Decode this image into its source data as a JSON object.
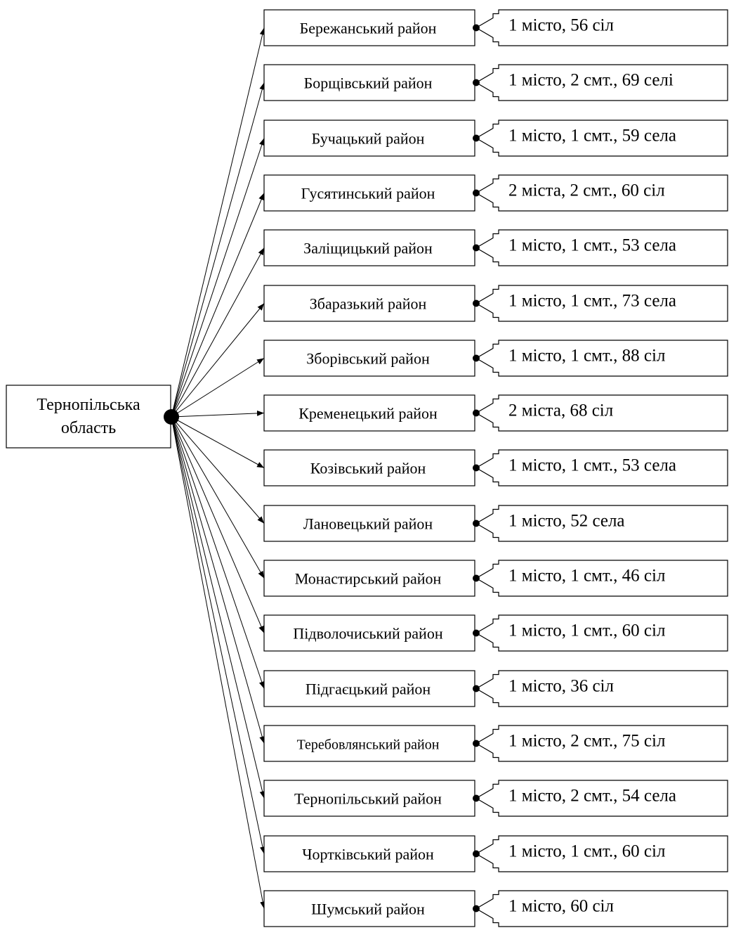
{
  "root": {
    "line1": "Тернопільська",
    "line2": "область"
  },
  "districts": [
    {
      "name": "Бережанський район",
      "info": "1 місто, 56 сіл"
    },
    {
      "name": "Борщівський район",
      "info": "1 місто, 2 смт., 69 селі"
    },
    {
      "name": "Бучацький район",
      "info": "1 місто, 1 смт., 59 села"
    },
    {
      "name": "Гусятинський район",
      "info": "2 міста, 2 смт., 60 сіл"
    },
    {
      "name": "Заліщицький район",
      "info": "1 місто, 1 смт., 53 села"
    },
    {
      "name": "Збаразький район",
      "info": "1 місто, 1 смт., 73 села"
    },
    {
      "name": "Зборівський район",
      "info": "1 місто, 1 смт., 88 сіл"
    },
    {
      "name": "Кременецький район",
      "info": "2 міста, 68 сіл"
    },
    {
      "name": "Козівський район",
      "info": "1 місто, 1 смт., 53 села"
    },
    {
      "name": "Лановецький район",
      "info": "1 місто, 52 села"
    },
    {
      "name": "Монастирський район",
      "info": "1 місто, 1 смт., 46 сіл"
    },
    {
      "name": "Підволочиський район",
      "info": "1 місто, 1 смт., 60 сіл"
    },
    {
      "name": "Підгаєцький район",
      "info": "1 місто, 36 сіл"
    },
    {
      "name": "Теребовлянський район",
      "info": "1 місто, 2 смт., 75 сіл"
    },
    {
      "name": "Тернопільський район",
      "info": "1 місто, 2 смт., 54 села"
    },
    {
      "name": "Чортківський район",
      "info": "1 місто, 1 смт., 60 сіл"
    },
    {
      "name": "Шумський район",
      "info": "1 місто, 60 сіл"
    }
  ]
}
